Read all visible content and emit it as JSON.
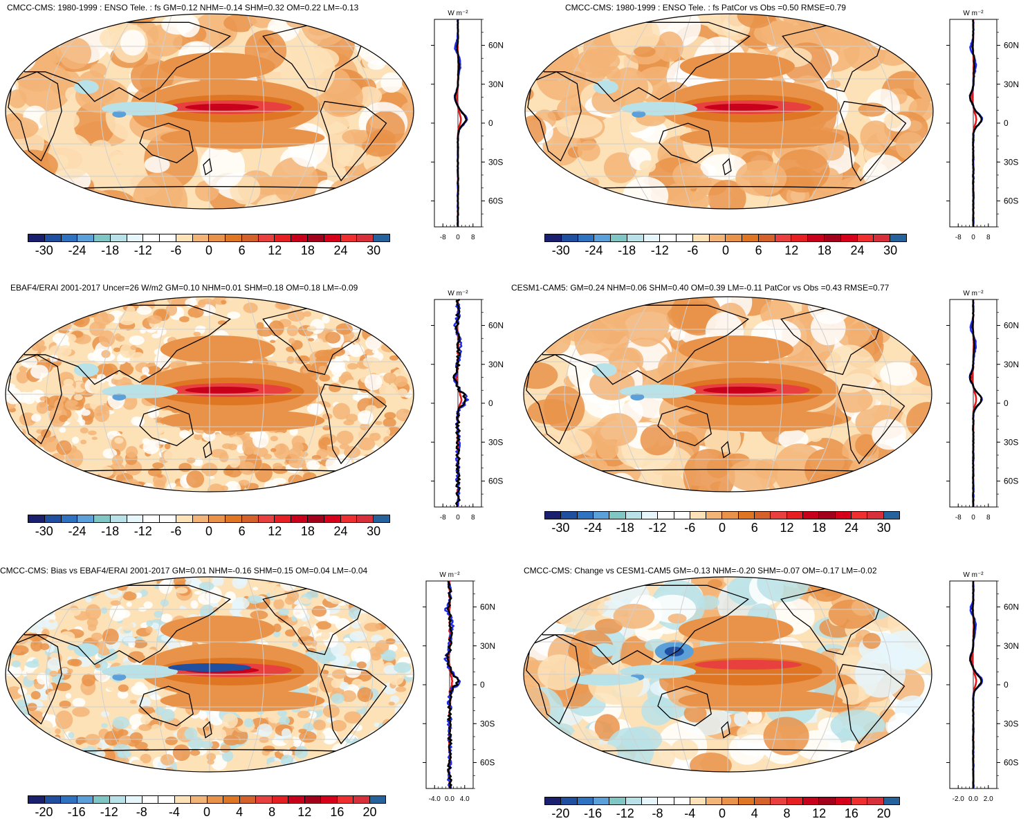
{
  "colors": {
    "scale": [
      "#1a1f6e",
      "#1f4f9e",
      "#2f72c0",
      "#5ba0d8",
      "#7fc6c4",
      "#b9e2e8",
      "#e6f6fb",
      "#ffffff",
      "#ffffff",
      "#fde2b8",
      "#f3b477",
      "#e9934a",
      "#df7624",
      "#d4622a",
      "#e8403e",
      "#e51f22",
      "#c8001c",
      "#a2001b",
      "#d7001b",
      "#ef2f2f",
      "#d8303a",
      "#26639c"
    ],
    "land": "#000000",
    "grid": "#d0d0d0",
    "profile_blue": "#1f2bf0",
    "profile_red": "#e8151b",
    "profile_black": "#000000"
  },
  "colorbar_large": [
    "-30",
    "-24",
    "-18",
    "-12",
    "-6",
    "0",
    "6",
    "12",
    "18",
    "24",
    "30"
  ],
  "colorbar_small": [
    "-20",
    "-16",
    "-12",
    "-8",
    "-4",
    "0",
    "4",
    "8",
    "12",
    "16",
    "20"
  ],
  "profile_unit": "W m⁻²",
  "lat_labels": [
    "60N",
    "30N",
    "0",
    "30S",
    "60S"
  ],
  "panels": [
    {
      "title": "CMCC-CMS: 1980-1999 : ENSO Tele. : fs GM=0.12 NHM=-0.14 SHM=0.32 OM=0.22 LM=-0.13",
      "xticks": [
        "-8",
        "0",
        "8"
      ],
      "scale": "large"
    },
    {
      "title": "CMCC-CMS: 1980-1999 : ENSO Tele. : fs PatCor vs Obs =0.50 RMSE=0.79",
      "xticks": [
        "-8",
        "0",
        "8"
      ],
      "scale": "large"
    },
    {
      "title": "EBAF4/ERAI 2001-2017 Uncer=26 W/m2 GM=0.10 NHM=0.01 SHM=0.18 OM=0.18 LM=-0.09",
      "xticks": [
        "-8",
        "0",
        "8"
      ],
      "scale": "large"
    },
    {
      "title": "CESM1-CAM5: GM=0.24 NHM=0.06 SHM=0.40 OM=0.39 LM=-0.11 PatCor vs Obs =0.43 RMSE=0.77",
      "xticks": [
        "-8",
        "0",
        "8"
      ],
      "scale": "large"
    },
    {
      "title": "CMCC-CMS: Bias vs EBAF4/ERAI 2001-2017 GM=0.01 NHM=-0.16 SHM=0.15 OM=0.04 LM=-0.04",
      "xticks": [
        "-4.0",
        "0.0",
        "4.0"
      ],
      "scale": "small"
    },
    {
      "title": "CMCC-CMS: Change vs CESM1-CAM5 GM=-0.13 NHM=-0.20 SHM=-0.07 OM=-0.17 LM=-0.02",
      "xticks": [
        "-2.0",
        "0.0",
        "2.0"
      ],
      "scale": "small"
    }
  ]
}
